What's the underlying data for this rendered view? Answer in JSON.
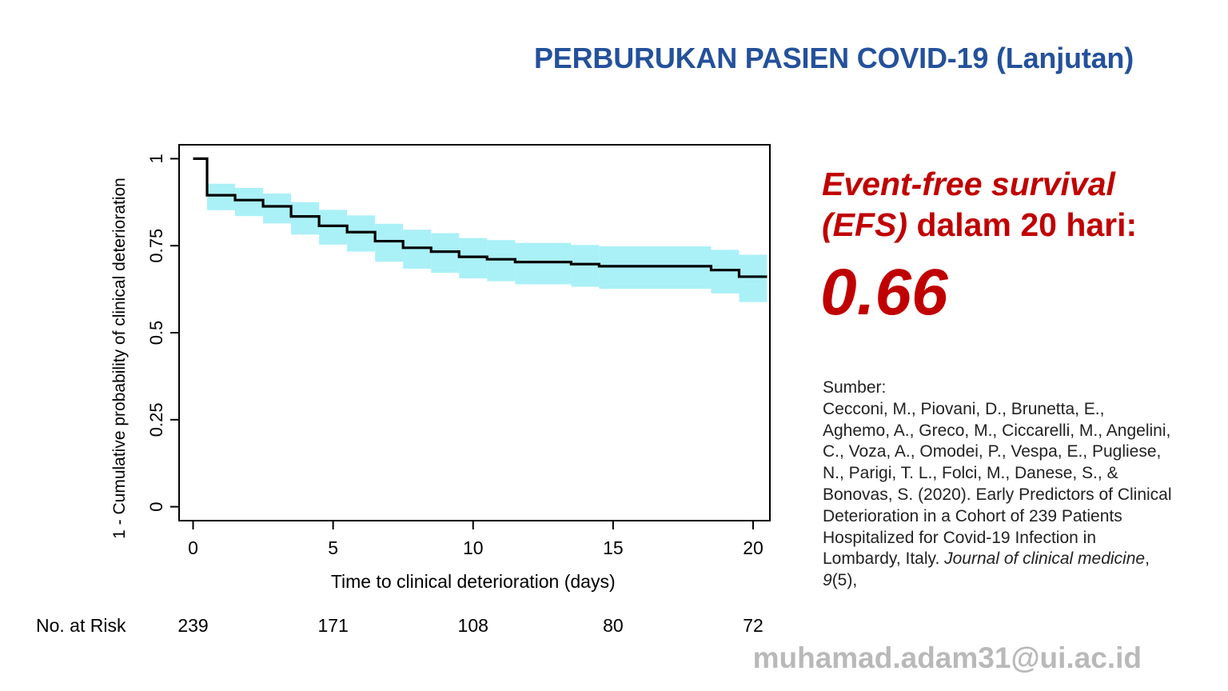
{
  "slide": {
    "title": "PERBURUKAN PASIEN COVID-19 (Lanjutan)"
  },
  "chart_data": {
    "type": "line",
    "subtype": "kaplan-meier step curve with confidence band",
    "xlabel": "Time to clinical deterioration (days)",
    "ylabel": "1 - Cumulative probability of clinical deterioration",
    "xlim": [
      -0.5,
      20.6
    ],
    "ylim": [
      -0.04,
      1.04
    ],
    "x_ticks": [
      0,
      5,
      10,
      15,
      20
    ],
    "y_ticks": [
      0,
      0.25,
      0.5,
      0.75,
      1
    ],
    "y_tick_labels": [
      "0",
      "0.25",
      "0.5",
      "0.75",
      "1"
    ],
    "grid": false,
    "line_color": "#000000",
    "band_color": "#aaf0f7",
    "series": [
      {
        "x": [
          0,
          0.5,
          1.5,
          2.5,
          3.5,
          4.5,
          5.5,
          6.5,
          7.5,
          8.5,
          9.5,
          10.5,
          11.5,
          13.5,
          14.5,
          18.5,
          19.5,
          20.5
        ],
        "survival": [
          1.0,
          0.895,
          0.881,
          0.863,
          0.834,
          0.807,
          0.789,
          0.763,
          0.744,
          0.733,
          0.718,
          0.711,
          0.703,
          0.697,
          0.691,
          0.68,
          0.661,
          0.661
        ],
        "ci_lower": [
          1.0,
          0.852,
          0.835,
          0.814,
          0.782,
          0.753,
          0.733,
          0.704,
          0.684,
          0.672,
          0.656,
          0.648,
          0.639,
          0.632,
          0.626,
          0.613,
          0.588,
          0.588
        ],
        "ci_upper": [
          1.0,
          0.928,
          0.916,
          0.9,
          0.875,
          0.853,
          0.837,
          0.813,
          0.796,
          0.786,
          0.772,
          0.766,
          0.758,
          0.752,
          0.748,
          0.738,
          0.724,
          0.724
        ]
      }
    ],
    "risk_table": {
      "label": "No. at Risk",
      "times": [
        0,
        5,
        10,
        15,
        20
      ],
      "counts": [
        "239",
        "171",
        "108",
        "80",
        "72"
      ]
    }
  },
  "efs": {
    "line1": "Event-free survival",
    "line2_italic": "(EFS)",
    "line2_rest": " dalam 20 hari:",
    "value": "0.66"
  },
  "source": {
    "heading": "Sumber:",
    "text": "Cecconi, M., Piovani, D., Brunetta, E., Aghemo, A., Greco, M., Ciccarelli, M., Angelini, C., Voza, A., Omodei, P., Vespa, E., Pugliese, N., Parigi, T. L., Folci, M., Danese, S., & Bonovas, S. (2020). Early Predictors of Clinical Deterioration in a Cohort of 239 Patients Hospitalized for Covid-19 Infection in Lombardy, Italy. ",
    "journal": "Journal of clinical medicine",
    "comma1": ", ",
    "volume": "9",
    "issue": "(5),"
  },
  "footer": {
    "email": "muhamad.adam31@ui.ac.id"
  }
}
